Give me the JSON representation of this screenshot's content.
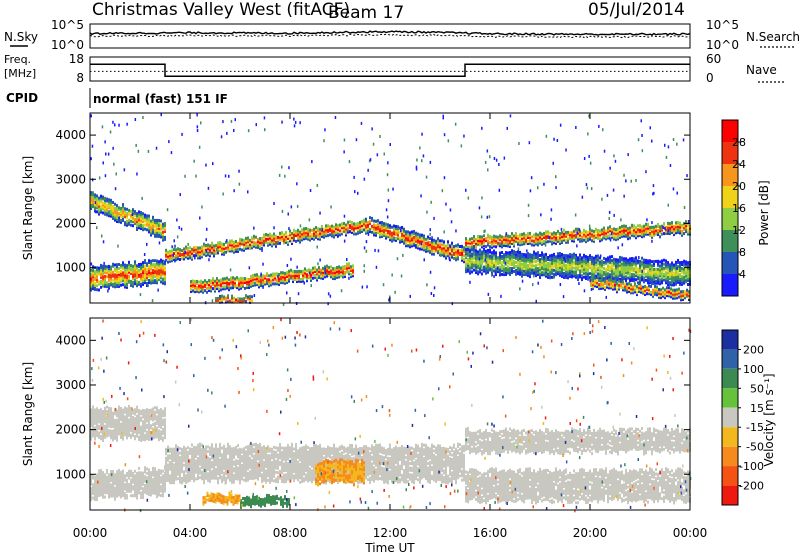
{
  "header": {
    "station": "Christmas Valley West (fitACF)",
    "beam": "Beam 17",
    "date": "05/Jul/2014"
  },
  "top_panels": {
    "nsky_label": "N.Sky",
    "nsearch_label": "N.Search",
    "noise_ticks": [
      "10^5",
      "10^0"
    ],
    "freq_label_1": "Freq.",
    "freq_label_2": "[MHz]",
    "freq_ticks": [
      "18",
      "8"
    ],
    "nave_label": "Nave",
    "nave_ticks": [
      "60",
      "0"
    ],
    "cpid_label": "CPID",
    "cpid_value": "normal (fast) 151 IF"
  },
  "x_axis": {
    "label": "Time UT",
    "ticks": [
      "00:00",
      "04:00",
      "08:00",
      "12:00",
      "16:00",
      "20:00",
      "00:00"
    ]
  },
  "y_axis": {
    "label": "Slant Range [km]",
    "ticks": [
      "1000",
      "2000",
      "3000",
      "4000"
    ]
  },
  "power_colorbar": {
    "label": "Power [dB]",
    "ticks": [
      "4",
      "8",
      "12",
      "16",
      "20",
      "24",
      "28"
    ],
    "colors": [
      "#1a1aff",
      "#2655b8",
      "#3e8f5a",
      "#8fce44",
      "#f0d218",
      "#f7951c",
      "#ee3311",
      "#ff0000"
    ]
  },
  "velocity_colorbar": {
    "label": "Velocity [m s⁻¹]",
    "ticks": [
      "200",
      "100",
      "50",
      "15",
      "-15",
      "-50",
      "-100",
      "-200"
    ],
    "colors": [
      "#1b2fa0",
      "#2f62a8",
      "#3b8a52",
      "#66c23a",
      "#c8c7c0",
      "#f2b81e",
      "#f68a1c",
      "#f45314",
      "#ee1a10"
    ]
  },
  "chart_data": [
    {
      "type": "line",
      "title": "N.Sky / N.Search",
      "x": [
        "00:00",
        "04:00",
        "08:00",
        "12:00",
        "16:00",
        "20:00",
        "00:00"
      ],
      "series": [
        {
          "name": "N.Sky",
          "values": [
            1000,
            1500,
            1200,
            2500,
            900,
            700,
            800
          ]
        },
        {
          "name": "N.Search",
          "values": [
            300,
            400,
            350,
            600,
            250,
            200,
            250
          ]
        }
      ],
      "ylim": [
        "10^0",
        "10^5"
      ],
      "yscale": "log"
    },
    {
      "type": "line",
      "title": "Freq. / Nave",
      "x": [
        "00:00",
        "03:00",
        "03:00",
        "15:00",
        "15:00",
        "00:00"
      ],
      "series": [
        {
          "name": "Freq.",
          "values": [
            15,
            15,
            10,
            10,
            15,
            15
          ]
        },
        {
          "name": "Nave",
          "values": [
            12,
            12,
            12,
            12,
            12,
            12
          ]
        }
      ],
      "ylim": [
        8,
        18
      ]
    },
    {
      "type": "heatmap",
      "title": "Power",
      "xlabel": "Time UT",
      "ylabel": "Slant Range [km]",
      "xlim": [
        "00:00",
        "00:00"
      ],
      "ylim": [
        200,
        4500
      ],
      "colorbar": "Power [dB]",
      "crange": [
        0,
        30
      ],
      "echo_bands": [
        {
          "t_start": 0,
          "t_end": 3,
          "range_start": 2550,
          "range_end": 1850,
          "width": 380,
          "peak_db": 22
        },
        {
          "t_start": 0,
          "t_end": 3,
          "range_start": 800,
          "range_end": 950,
          "width": 500,
          "peak_db": 26
        },
        {
          "t_start": 3,
          "t_end": 11,
          "range_start": 1300,
          "range_end": 2000,
          "width": 260,
          "peak_db": 28
        },
        {
          "t_start": 11,
          "t_end": 15,
          "range_start": 2000,
          "range_end": 1300,
          "width": 320,
          "peak_db": 28
        },
        {
          "t_start": 4,
          "t_end": 10.5,
          "range_start": 600,
          "range_end": 1000,
          "width": 260,
          "peak_db": 29
        },
        {
          "t_start": 5,
          "t_end": 6.5,
          "range_start": 300,
          "range_end": 300,
          "width": 150,
          "peak_db": 29
        },
        {
          "t_start": 15,
          "t_end": 24,
          "range_start": 1600,
          "range_end": 1950,
          "width": 260,
          "peak_db": 28
        },
        {
          "t_start": 15,
          "t_end": 24,
          "range_start": 1200,
          "range_end": 900,
          "width": 500,
          "peak_db": 16
        },
        {
          "t_start": 20,
          "t_end": 24,
          "range_start": 700,
          "range_end": 400,
          "width": 200,
          "peak_db": 26
        }
      ]
    },
    {
      "type": "heatmap",
      "title": "Velocity",
      "xlabel": "Time UT",
      "ylabel": "Slant Range [km]",
      "xlim": [
        "00:00",
        "00:00"
      ],
      "ylim": [
        200,
        4500
      ],
      "colorbar": "Velocity [m s⁻¹]",
      "crange": [
        -200,
        200
      ],
      "regions": [
        {
          "t_start": 0,
          "t_end": 3,
          "range_start": 2200,
          "range_end": 2200,
          "width": 700,
          "velocity": 0
        },
        {
          "t_start": 0,
          "t_end": 3,
          "range_start": 800,
          "range_end": 900,
          "width": 600,
          "velocity": 0
        },
        {
          "t_start": 3,
          "t_end": 15,
          "range_start": 1300,
          "range_end": 1300,
          "width": 800,
          "velocity": 0
        },
        {
          "t_start": 9,
          "t_end": 11,
          "range_start": 1100,
          "range_end": 1100,
          "width": 500,
          "velocity": -50
        },
        {
          "t_start": 6,
          "t_end": 8,
          "range_start": 450,
          "range_end": 450,
          "width": 200,
          "velocity": 50
        },
        {
          "t_start": 4.5,
          "t_end": 6,
          "range_start": 500,
          "range_end": 500,
          "width": 160,
          "velocity": -50
        },
        {
          "t_start": 15,
          "t_end": 24,
          "range_start": 1800,
          "range_end": 1800,
          "width": 500,
          "velocity": 0
        },
        {
          "t_start": 15,
          "t_end": 24,
          "range_start": 800,
          "range_end": 800,
          "width": 700,
          "velocity": 0
        }
      ]
    }
  ]
}
